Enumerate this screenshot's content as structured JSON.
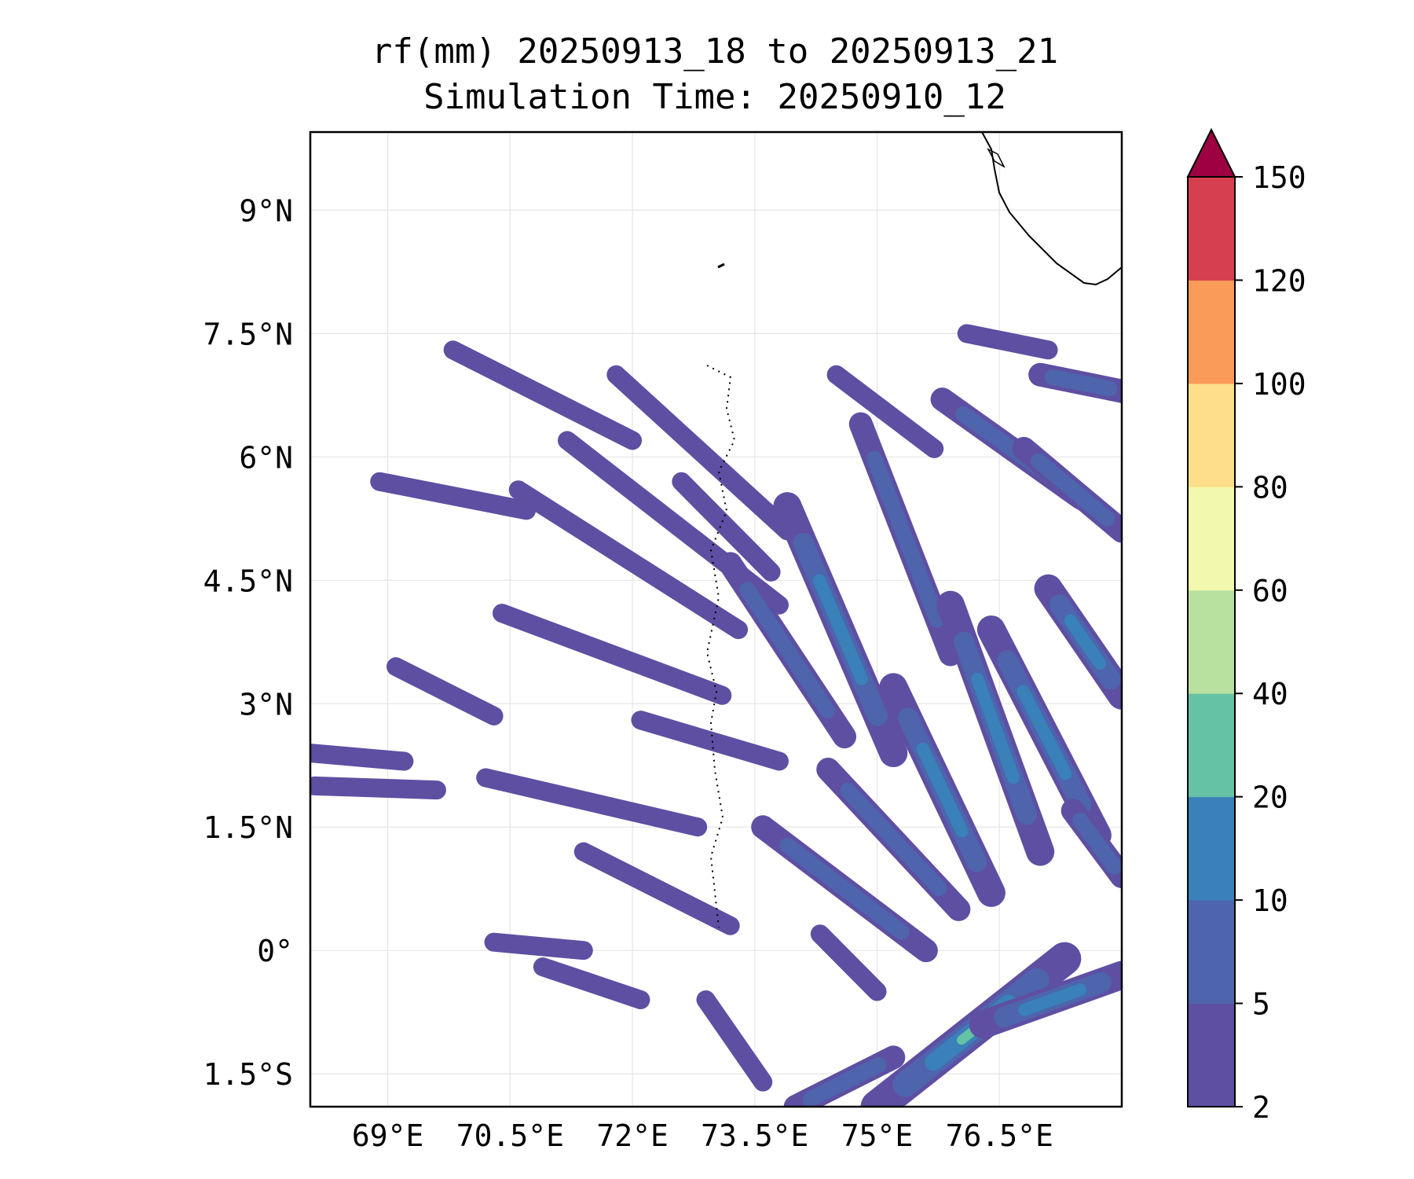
{
  "chart_data": {
    "type": "heatmap",
    "title_line1": "rf(mm) 20250913_18 to 20250913_21",
    "title_line2": "Simulation Time: 20250910_12",
    "xlim": [
      68.05,
      78.0
    ],
    "ylim": [
      -1.9,
      9.95
    ],
    "x_ticks": [
      {
        "value": 69.0,
        "label": "69°E"
      },
      {
        "value": 70.5,
        "label": "70.5°E"
      },
      {
        "value": 72.0,
        "label": "72°E"
      },
      {
        "value": 73.5,
        "label": "73.5°E"
      },
      {
        "value": 75.0,
        "label": "75°E"
      },
      {
        "value": 76.5,
        "label": "76.5°E"
      }
    ],
    "y_ticks": [
      {
        "value": 9.0,
        "label": "9°N"
      },
      {
        "value": 7.5,
        "label": "7.5°N"
      },
      {
        "value": 6.0,
        "label": "6°N"
      },
      {
        "value": 4.5,
        "label": "4.5°N"
      },
      {
        "value": 3.0,
        "label": "3°N"
      },
      {
        "value": 1.5,
        "label": "1.5°N"
      },
      {
        "value": 0.0,
        "label": "0°"
      },
      {
        "value": -1.5,
        "label": "1.5°S"
      }
    ],
    "grid": true,
    "colorbar": {
      "levels": [
        "2",
        "5",
        "10",
        "20",
        "40",
        "60",
        "80",
        "100",
        "120",
        "150"
      ],
      "colors": [
        "#5e4fa2",
        "#4e64ad",
        "#3a80b9",
        "#66c2a5",
        "#b8e09f",
        "#f2f9ae",
        "#fddf8b",
        "#fa9b59",
        "#d63f4f"
      ],
      "extend_color": "#9e0142",
      "extend": "max"
    },
    "rain_bands": [
      {
        "lon": [
          68.05,
          69.2
        ],
        "lat": [
          2.4,
          2.3
        ],
        "level": 0
      },
      {
        "lon": [
          68.1,
          69.6
        ],
        "lat": [
          2.0,
          1.95
        ],
        "level": 0
      },
      {
        "lon": [
          69.1,
          70.3
        ],
        "lat": [
          3.45,
          2.85
        ],
        "level": 0
      },
      {
        "lon": [
          68.9,
          70.7
        ],
        "lat": [
          5.7,
          5.35
        ],
        "level": 0
      },
      {
        "lon": [
          69.8,
          72.0
        ],
        "lat": [
          7.3,
          6.2
        ],
        "level": 0
      },
      {
        "lon": [
          70.4,
          73.1
        ],
        "lat": [
          4.1,
          3.1
        ],
        "level": 0
      },
      {
        "lon": [
          70.2,
          72.8
        ],
        "lat": [
          2.1,
          1.5
        ],
        "level": 0
      },
      {
        "lon": [
          70.6,
          73.3
        ],
        "lat": [
          5.6,
          3.9
        ],
        "level": 0
      },
      {
        "lon": [
          71.2,
          73.8
        ],
        "lat": [
          6.2,
          4.2
        ],
        "level": 0
      },
      {
        "lon": [
          71.8,
          73.9
        ],
        "lat": [
          7.0,
          5.1
        ],
        "level": 0
      },
      {
        "lon": [
          72.1,
          73.8
        ],
        "lat": [
          2.8,
          2.3
        ],
        "level": 0
      },
      {
        "lon": [
          71.4,
          73.2
        ],
        "lat": [
          1.2,
          0.3
        ],
        "level": 0
      },
      {
        "lon": [
          72.6,
          73.7
        ],
        "lat": [
          5.7,
          4.6
        ],
        "level": 0
      },
      {
        "lon": [
          73.2,
          74.6
        ],
        "lat": [
          4.7,
          2.6
        ],
        "level": 1
      },
      {
        "lon": [
          73.9,
          75.2
        ],
        "lat": [
          5.4,
          2.4
        ],
        "level": 2
      },
      {
        "lon": [
          74.8,
          75.9
        ],
        "lat": [
          6.4,
          3.6
        ],
        "level": 1
      },
      {
        "lon": [
          75.9,
          77.0
        ],
        "lat": [
          4.2,
          1.2
        ],
        "level": 2
      },
      {
        "lon": [
          75.2,
          76.4
        ],
        "lat": [
          3.2,
          0.7
        ],
        "level": 2
      },
      {
        "lon": [
          76.4,
          77.7
        ],
        "lat": [
          3.9,
          1.4
        ],
        "level": 2
      },
      {
        "lon": [
          77.1,
          78.0
        ],
        "lat": [
          4.4,
          3.1
        ],
        "level": 2
      },
      {
        "lon": [
          73.6,
          75.6
        ],
        "lat": [
          1.5,
          0.0
        ],
        "level": 1
      },
      {
        "lon": [
          74.4,
          76.0
        ],
        "lat": [
          2.2,
          0.5
        ],
        "level": 1
      },
      {
        "lon": [
          75.8,
          77.5
        ],
        "lat": [
          6.7,
          5.5
        ],
        "level": 1
      },
      {
        "lon": [
          76.8,
          78.0
        ],
        "lat": [
          6.1,
          5.1
        ],
        "level": 1
      },
      {
        "lon": [
          77.0,
          78.0
        ],
        "lat": [
          7.0,
          6.8
        ],
        "level": 1
      },
      {
        "lon": [
          72.9,
          73.6
        ],
        "lat": [
          -0.6,
          -1.6
        ],
        "level": 0
      },
      {
        "lon": [
          74.3,
          75.0
        ],
        "lat": [
          0.2,
          -0.5
        ],
        "level": 0
      },
      {
        "lon": [
          75.0,
          77.3
        ],
        "lat": [
          -1.9,
          -0.1
        ],
        "level": 3
      },
      {
        "lon": [
          76.3,
          78.0
        ],
        "lat": [
          -0.9,
          -0.3
        ],
        "level": 2
      },
      {
        "lon": [
          77.4,
          78.0
        ],
        "lat": [
          1.7,
          0.9
        ],
        "level": 1
      },
      {
        "lon": [
          74.0,
          75.2
        ],
        "lat": [
          -1.9,
          -1.3
        ],
        "level": 1
      },
      {
        "lon": [
          70.9,
          72.1
        ],
        "lat": [
          -0.2,
          -0.6
        ],
        "level": 0
      },
      {
        "lon": [
          70.3,
          71.4
        ],
        "lat": [
          0.1,
          0.0
        ],
        "level": 0
      },
      {
        "lon": [
          74.5,
          75.7
        ],
        "lat": [
          7.0,
          6.1
        ],
        "level": 0
      },
      {
        "lon": [
          76.1,
          77.1
        ],
        "lat": [
          7.5,
          7.3
        ],
        "level": 0
      }
    ]
  }
}
